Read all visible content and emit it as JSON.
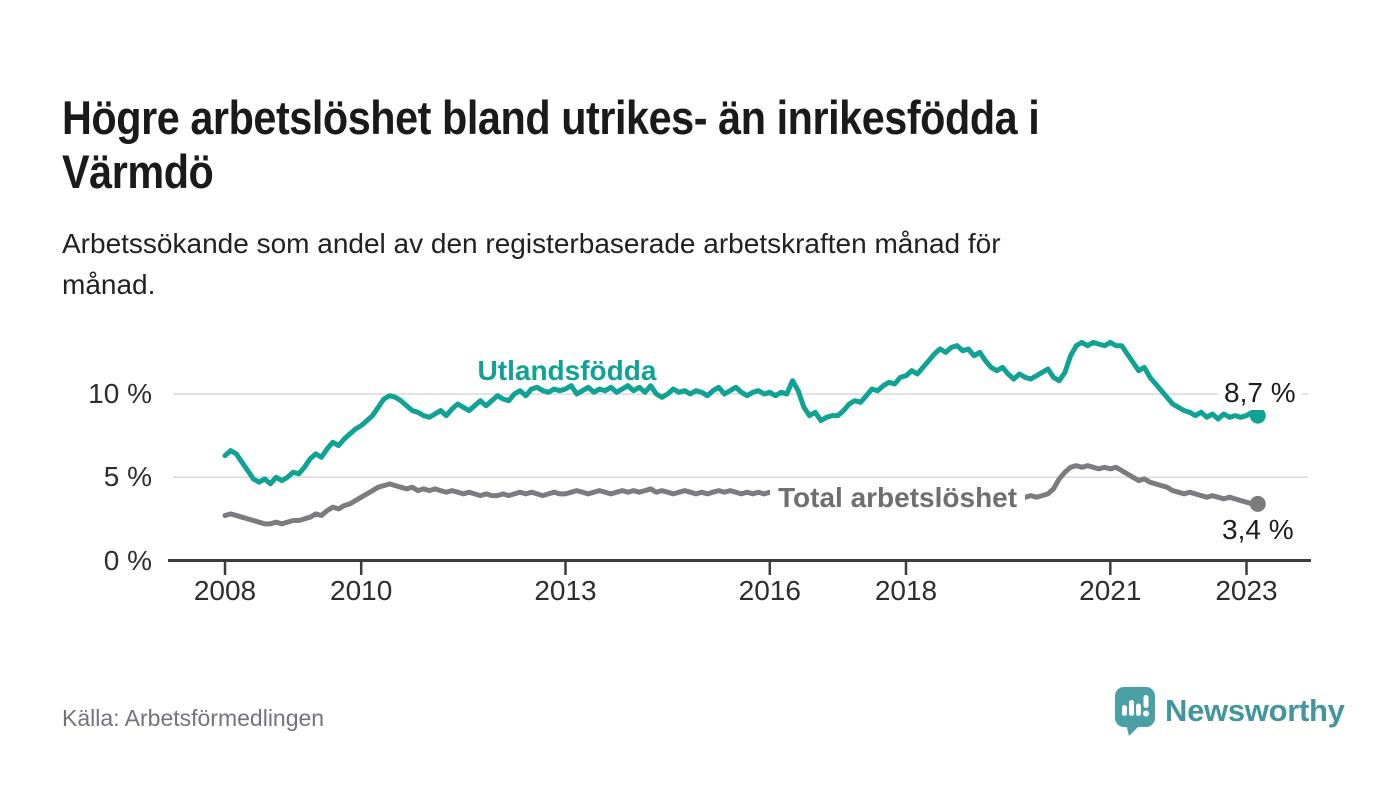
{
  "header": {
    "title": "Högre arbetslöshet bland utrikes- än inrikesfödda i\nVärmdö",
    "subtitle": "Arbetssökande som andel av den registerbaserade arbetskraften månad för\nmånad."
  },
  "chart_data": {
    "type": "line",
    "unit": "%",
    "frequency": "monthly",
    "start_year": 2008,
    "start_month": 1,
    "ylim": [
      0,
      14
    ],
    "grid": "horizontal gridlines at 5 % and 10 %, baseline axis at 0 %",
    "legend_position": "inline labels on lines",
    "yticks": [
      {
        "value": 0,
        "label": "0 %"
      },
      {
        "value": 5,
        "label": "5 %"
      },
      {
        "value": 10,
        "label": "10 %"
      }
    ],
    "xticks": [
      {
        "value": 2008,
        "label": "2008"
      },
      {
        "value": 2010,
        "label": "2010"
      },
      {
        "value": 2013,
        "label": "2013"
      },
      {
        "value": 2016,
        "label": "2016"
      },
      {
        "value": 2018,
        "label": "2018"
      },
      {
        "value": 2021,
        "label": "2021"
      },
      {
        "value": 2023,
        "label": "2023"
      }
    ],
    "series": [
      {
        "name": "Utlandsfödda",
        "color": "#0fa295",
        "end_label": "8,7 %",
        "end_value": 8.7,
        "values": [
          6.3,
          6.6,
          6.4,
          5.9,
          5.4,
          4.9,
          4.7,
          4.9,
          4.6,
          5.0,
          4.8,
          5.0,
          5.3,
          5.2,
          5.6,
          6.1,
          6.4,
          6.2,
          6.7,
          7.1,
          6.9,
          7.3,
          7.6,
          7.9,
          8.1,
          8.4,
          8.7,
          9.2,
          9.7,
          9.9,
          9.8,
          9.6,
          9.3,
          9.0,
          8.9,
          8.7,
          8.6,
          8.8,
          9.0,
          8.7,
          9.1,
          9.4,
          9.2,
          9.0,
          9.3,
          9.6,
          9.3,
          9.6,
          9.9,
          9.7,
          9.6,
          10.0,
          10.2,
          9.9,
          10.3,
          10.4,
          10.2,
          10.1,
          10.3,
          10.2,
          10.3,
          10.5,
          10.0,
          10.2,
          10.4,
          10.1,
          10.3,
          10.2,
          10.4,
          10.1,
          10.3,
          10.5,
          10.2,
          10.4,
          10.1,
          10.5,
          10.0,
          9.8,
          10.0,
          10.3,
          10.1,
          10.2,
          10.0,
          10.2,
          10.1,
          9.9,
          10.2,
          10.4,
          10.0,
          10.2,
          10.4,
          10.1,
          9.9,
          10.1,
          10.2,
          10.0,
          10.1,
          9.9,
          10.1,
          10.0,
          10.8,
          10.2,
          9.2,
          8.7,
          8.9,
          8.4,
          8.6,
          8.7,
          8.7,
          9.0,
          9.4,
          9.6,
          9.5,
          9.9,
          10.3,
          10.2,
          10.5,
          10.7,
          10.6,
          11.0,
          11.1,
          11.4,
          11.2,
          11.6,
          12.0,
          12.4,
          12.7,
          12.5,
          12.8,
          12.9,
          12.6,
          12.7,
          12.3,
          12.5,
          12.0,
          11.6,
          11.4,
          11.6,
          11.2,
          10.9,
          11.2,
          11.0,
          10.9,
          11.1,
          11.3,
          11.5,
          11.0,
          10.8,
          11.3,
          12.3,
          12.9,
          13.1,
          12.9,
          13.1,
          13.0,
          12.9,
          13.1,
          12.9,
          12.9,
          12.4,
          11.9,
          11.4,
          11.6,
          11.0,
          10.6,
          10.2,
          9.8,
          9.4,
          9.2,
          9.0,
          8.9,
          8.7,
          8.9,
          8.6,
          8.8,
          8.5,
          8.8,
          8.6,
          8.7,
          8.6,
          8.7,
          8.9,
          8.7
        ]
      },
      {
        "name": "Total arbetslöshet",
        "color": "#7b7b80",
        "end_label": "3,4 %",
        "end_value": 3.4,
        "values": [
          2.7,
          2.8,
          2.7,
          2.6,
          2.5,
          2.4,
          2.3,
          2.2,
          2.2,
          2.3,
          2.2,
          2.3,
          2.4,
          2.4,
          2.5,
          2.6,
          2.8,
          2.7,
          3.0,
          3.2,
          3.1,
          3.3,
          3.4,
          3.6,
          3.8,
          4.0,
          4.2,
          4.4,
          4.5,
          4.6,
          4.5,
          4.4,
          4.3,
          4.4,
          4.2,
          4.3,
          4.2,
          4.3,
          4.2,
          4.1,
          4.2,
          4.1,
          4.0,
          4.1,
          4.0,
          3.9,
          4.0,
          3.9,
          3.9,
          4.0,
          3.9,
          4.0,
          4.1,
          4.0,
          4.1,
          4.0,
          3.9,
          4.0,
          4.1,
          4.0,
          4.0,
          4.1,
          4.2,
          4.1,
          4.0,
          4.1,
          4.2,
          4.1,
          4.0,
          4.1,
          4.2,
          4.1,
          4.2,
          4.1,
          4.2,
          4.3,
          4.1,
          4.2,
          4.1,
          4.0,
          4.1,
          4.2,
          4.1,
          4.0,
          4.1,
          4.0,
          4.1,
          4.2,
          4.1,
          4.2,
          4.1,
          4.0,
          4.1,
          4.0,
          4.1,
          4.0,
          4.1,
          4.0,
          3.9,
          4.0,
          3.9,
          3.8,
          3.9,
          3.8,
          3.7,
          3.8,
          3.7,
          3.6,
          3.7,
          3.6,
          3.7,
          3.6,
          3.7,
          3.6,
          3.7,
          3.6,
          3.7,
          3.6,
          3.7,
          3.6,
          3.7,
          3.6,
          3.7,
          3.6,
          3.7,
          3.6,
          3.7,
          3.6,
          3.7,
          3.6,
          3.7,
          3.8,
          3.7,
          3.8,
          3.7,
          3.8,
          3.7,
          3.8,
          3.7,
          3.8,
          3.7,
          3.8,
          3.9,
          3.8,
          3.9,
          4.0,
          4.3,
          4.9,
          5.3,
          5.6,
          5.7,
          5.6,
          5.7,
          5.6,
          5.5,
          5.6,
          5.5,
          5.6,
          5.4,
          5.2,
          5.0,
          4.8,
          4.9,
          4.7,
          4.6,
          4.5,
          4.4,
          4.2,
          4.1,
          4.0,
          4.1,
          4.0,
          3.9,
          3.8,
          3.9,
          3.8,
          3.7,
          3.8,
          3.7,
          3.6,
          3.5,
          3.4,
          3.4
        ]
      }
    ]
  },
  "footer": {
    "source": "Källa: Arbetsförmedlingen",
    "brand": "Newsworthy"
  },
  "colors": {
    "accent_teal": "#0fa295",
    "line_gray": "#7b7b80",
    "grid": "#dadada",
    "axis": "#3c3c3c",
    "text_dark": "#1a1a1a",
    "muted": "#73737b",
    "brand": "#4ba0a5"
  }
}
